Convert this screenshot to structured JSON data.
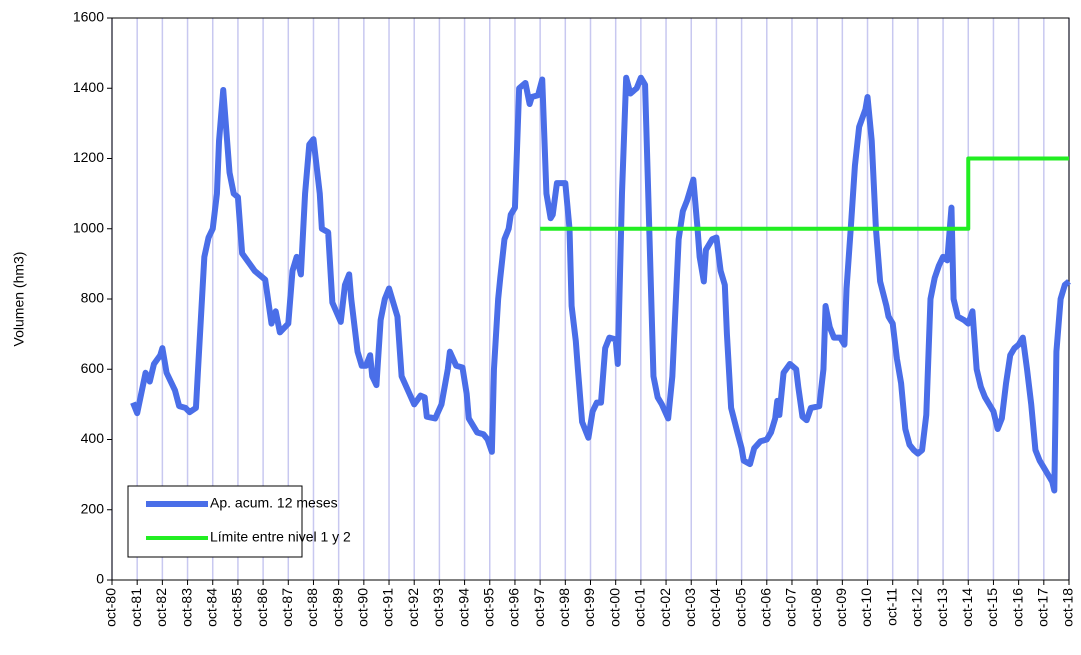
{
  "chart_data": {
    "type": "line",
    "ylabel": "Volumen (hm3)",
    "ylim": [
      0,
      1600
    ],
    "yticks": [
      0,
      200,
      400,
      600,
      800,
      1000,
      1200,
      1400,
      1600
    ],
    "xlim": [
      "1980-10",
      "2018-10"
    ],
    "xticks": [
      {
        "value": "1980-10",
        "label": "oct-80"
      },
      {
        "value": "1981-10",
        "label": "oct-81"
      },
      {
        "value": "1982-10",
        "label": "oct-82"
      },
      {
        "value": "1983-10",
        "label": "oct-83"
      },
      {
        "value": "1984-10",
        "label": "oct-84"
      },
      {
        "value": "1985-10",
        "label": "oct-85"
      },
      {
        "value": "1986-10",
        "label": "oct-86"
      },
      {
        "value": "1987-10",
        "label": "oct-87"
      },
      {
        "value": "1988-10",
        "label": "oct-88"
      },
      {
        "value": "1989-10",
        "label": "oct-89"
      },
      {
        "value": "1990-10",
        "label": "oct-90"
      },
      {
        "value": "1991-10",
        "label": "oct-91"
      },
      {
        "value": "1992-10",
        "label": "oct-92"
      },
      {
        "value": "1993-10",
        "label": "oct-93"
      },
      {
        "value": "1994-10",
        "label": "oct-94"
      },
      {
        "value": "1995-10",
        "label": "oct-95"
      },
      {
        "value": "1996-10",
        "label": "oct-96"
      },
      {
        "value": "1997-10",
        "label": "oct-97"
      },
      {
        "value": "1998-10",
        "label": "oct-98"
      },
      {
        "value": "1999-10",
        "label": "oct-99"
      },
      {
        "value": "2000-10",
        "label": "oct-00"
      },
      {
        "value": "2001-10",
        "label": "oct-01"
      },
      {
        "value": "2002-10",
        "label": "oct-02"
      },
      {
        "value": "2003-10",
        "label": "oct-03"
      },
      {
        "value": "2004-10",
        "label": "oct-04"
      },
      {
        "value": "2005-10",
        "label": "oct-05"
      },
      {
        "value": "2006-10",
        "label": "oct-06"
      },
      {
        "value": "2007-10",
        "label": "oct-07"
      },
      {
        "value": "2008-10",
        "label": "oct-08"
      },
      {
        "value": "2009-10",
        "label": "oct-09"
      },
      {
        "value": "2010-10",
        "label": "oct-10"
      },
      {
        "value": "2011-10",
        "label": "oct-11"
      },
      {
        "value": "2012-10",
        "label": "oct-12"
      },
      {
        "value": "2013-10",
        "label": "oct-13"
      },
      {
        "value": "2014-10",
        "label": "oct-14"
      },
      {
        "value": "2015-10",
        "label": "oct-15"
      },
      {
        "value": "2016-10",
        "label": "oct-16"
      },
      {
        "value": "2017-10",
        "label": "oct-17"
      },
      {
        "value": "2018-10",
        "label": "oct-18"
      }
    ],
    "grid": "x",
    "legend": "lower left",
    "series": [
      {
        "name": "Ap. acum. 12 meses",
        "color": "#4a6ee8",
        "x": [
          "1981-08",
          "1981-10",
          "1982-02",
          "1982-04",
          "1982-06",
          "1982-09",
          "1982-10",
          "1982-12",
          "1983-04",
          "1983-06",
          "1983-09",
          "1983-11",
          "1984-02",
          "1984-03",
          "1984-06",
          "1984-08",
          "1984-10",
          "1984-12",
          "1985-01",
          "1985-03",
          "1985-06",
          "1985-08",
          "1985-10",
          "1985-12",
          "1986-03",
          "1986-06",
          "1986-11",
          "1987-02",
          "1987-04",
          "1987-06",
          "1987-10",
          "1987-12",
          "1988-02",
          "1988-04",
          "1988-06",
          "1988-08",
          "1988-10",
          "1989-01",
          "1989-02",
          "1989-05",
          "1989-07",
          "1989-11",
          "1990-01",
          "1990-03",
          "1990-04",
          "1990-07",
          "1990-09",
          "1990-11",
          "1991-01",
          "1991-02",
          "1991-04",
          "1991-06",
          "1991-08",
          "1991-10",
          "1992-02",
          "1992-04",
          "1992-07",
          "1992-10",
          "1993-01",
          "1993-03",
          "1993-04",
          "1993-08",
          "1993-11",
          "1994-02",
          "1994-03",
          "1994-06",
          "1994-09",
          "1994-11",
          "1994-12",
          "1995-04",
          "1995-07",
          "1995-09",
          "1995-11",
          "1995-12",
          "1996-02",
          "1996-03",
          "1996-05",
          "1996-07",
          "1996-08",
          "1996-10",
          "1996-12",
          "1997-03",
          "1997-05",
          "1997-06",
          "1997-09",
          "1997-11",
          "1998-01",
          "1998-03",
          "1998-04",
          "1998-06",
          "1998-10",
          "1998-12",
          "1999-01",
          "1999-03",
          "1999-04",
          "1999-06",
          "1999-09",
          "1999-11",
          "2000-01",
          "2000-03",
          "2000-05",
          "2000-07",
          "2000-10",
          "2000-11",
          "2001-01",
          "2001-03",
          "2001-05",
          "2001-08",
          "2001-10",
          "2001-12",
          "2002-02",
          "2002-04",
          "2002-06",
          "2002-08",
          "2002-11",
          "2003-01",
          "2003-03",
          "2003-04",
          "2003-06",
          "2003-08",
          "2003-11",
          "2004-01",
          "2004-02",
          "2004-04",
          "2004-05",
          "2004-08",
          "2004-10",
          "2004-12",
          "2005-02",
          "2005-03",
          "2005-05",
          "2005-08",
          "2005-10",
          "2005-11",
          "2006-02",
          "2006-04",
          "2006-07",
          "2006-10",
          "2006-12",
          "2007-02",
          "2007-03",
          "2007-04",
          "2007-06",
          "2007-09",
          "2007-12",
          "2008-01",
          "2008-03",
          "2008-05",
          "2008-07",
          "2008-11",
          "2009-01",
          "2009-02",
          "2009-04",
          "2009-06",
          "2009-09",
          "2009-11",
          "2009-12",
          "2010-02",
          "2010-04",
          "2010-06",
          "2010-09",
          "2010-10",
          "2010-12",
          "2011-02",
          "2011-04",
          "2011-07",
          "2011-08",
          "2011-10",
          "2011-12",
          "2012-02",
          "2012-04",
          "2012-06",
          "2012-08",
          "2012-10",
          "2012-12",
          "2013-02",
          "2013-04",
          "2013-06",
          "2013-08",
          "2013-10",
          "2013-12",
          "2014-02",
          "2014-03",
          "2014-05",
          "2014-08",
          "2014-10",
          "2014-12",
          "2015-02",
          "2015-04",
          "2015-06",
          "2015-08",
          "2015-10",
          "2015-12",
          "2016-02",
          "2016-04",
          "2016-06",
          "2016-08",
          "2016-10",
          "2016-12",
          "2017-02",
          "2017-04",
          "2017-06",
          "2017-08",
          "2017-10",
          "2017-12",
          "2018-02",
          "2018-03",
          "2018-04",
          "2018-06",
          "2018-08",
          "2018-10"
        ],
        "values": [
          505,
          475,
          590,
          565,
          615,
          640,
          660,
          590,
          540,
          495,
          490,
          478,
          490,
          600,
          920,
          975,
          1000,
          1100,
          1250,
          1395,
          1160,
          1100,
          1090,
          930,
          905,
          880,
          855,
          730,
          765,
          705,
          730,
          880,
          920,
          870,
          1100,
          1240,
          1255,
          1100,
          1000,
          990,
          790,
          735,
          840,
          870,
          800,
          650,
          610,
          610,
          640,
          580,
          555,
          740,
          800,
          830,
          750,
          580,
          540,
          500,
          525,
          520,
          465,
          460,
          500,
          600,
          650,
          610,
          605,
          530,
          460,
          420,
          415,
          400,
          365,
          600,
          800,
          860,
          970,
          1000,
          1040,
          1060,
          1400,
          1415,
          1355,
          1375,
          1380,
          1425,
          1100,
          1030,
          1040,
          1130,
          1130,
          1000,
          780,
          680,
          600,
          450,
          405,
          480,
          505,
          505,
          660,
          690,
          685,
          615,
          1100,
          1430,
          1385,
          1400,
          1430,
          1410,
          1000,
          580,
          520,
          500,
          460,
          580,
          840,
          970,
          1050,
          1080,
          1140,
          1000,
          920,
          850,
          940,
          970,
          975,
          880,
          840,
          700,
          490,
          420,
          375,
          340,
          330,
          375,
          395,
          400,
          420,
          460,
          510,
          470,
          590,
          615,
          600,
          550,
          465,
          455,
          490,
          495,
          600,
          780,
          720,
          690,
          690,
          670,
          830,
          1000,
          1180,
          1290,
          1340,
          1375,
          1250,
          1000,
          850,
          780,
          750,
          730,
          630,
          560,
          430,
          385,
          370,
          360,
          370,
          470,
          800,
          860,
          895,
          920,
          910,
          1060,
          800,
          750,
          740,
          730,
          765,
          600,
          550,
          520,
          500,
          480,
          430,
          460,
          560,
          640,
          660,
          670,
          690,
          600,
          500,
          370,
          340,
          320,
          300,
          280,
          255,
          650,
          800,
          840,
          850
        ]
      },
      {
        "name": "Límite entre nivel 1 y 2",
        "color": "#22ee22",
        "x": [
          "1997-10",
          "2014-10",
          "2014-10",
          "2018-10"
        ],
        "values": [
          1000,
          1000,
          1200,
          1200
        ]
      }
    ]
  }
}
